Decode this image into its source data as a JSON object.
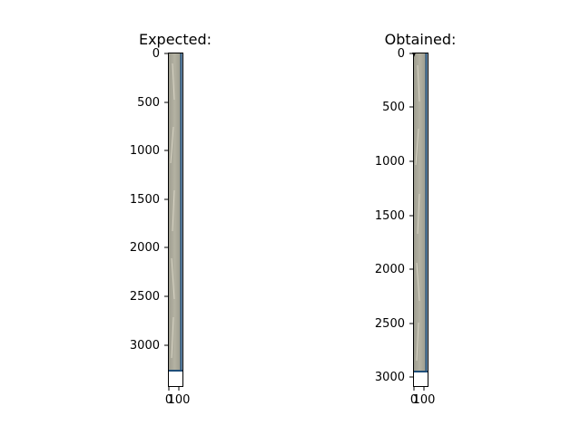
{
  "figure": {
    "background": "#ffffff",
    "image_colors": {
      "strip_base": "#a8a797",
      "strip_light": "#c9c6b6",
      "strip_dark": "#8e8d80",
      "edge_blue": "#1f4e79",
      "bottom_blank": "#ffffff"
    }
  },
  "chart_data": [
    {
      "type": "image",
      "title": "Expected:",
      "xlabel": "",
      "ylabel": "",
      "xlim": [
        0,
        140
      ],
      "ylim": [
        3420,
        0
      ],
      "image_extent_y": [
        0,
        3300
      ],
      "image_extent_x": [
        0,
        140
      ],
      "xticks": [
        0,
        100
      ],
      "xtick_labels": [
        "0",
        "100"
      ],
      "yticks": [
        0,
        500,
        1000,
        1500,
        2000,
        2500,
        3000
      ],
      "ytick_labels": [
        "0",
        "500",
        "1000",
        "1500",
        "2000",
        "2500",
        "3000"
      ],
      "grid": false,
      "description_text": ""
    },
    {
      "type": "image",
      "title": "Obtained:",
      "xlabel": "",
      "ylabel": "",
      "xlim": [
        0,
        140
      ],
      "ylim": [
        3100,
        0
      ],
      "image_extent_y": [
        0,
        2930
      ],
      "image_extent_x": [
        0,
        140
      ],
      "xticks": [
        0,
        100
      ],
      "xtick_labels": [
        "0",
        "100"
      ],
      "yticks": [
        0,
        500,
        1000,
        1500,
        2000,
        2500,
        3000
      ],
      "ytick_labels": [
        "0",
        "500",
        "1000",
        "1500",
        "2000",
        "2500",
        "3000"
      ],
      "grid": false,
      "description_text": ""
    }
  ]
}
